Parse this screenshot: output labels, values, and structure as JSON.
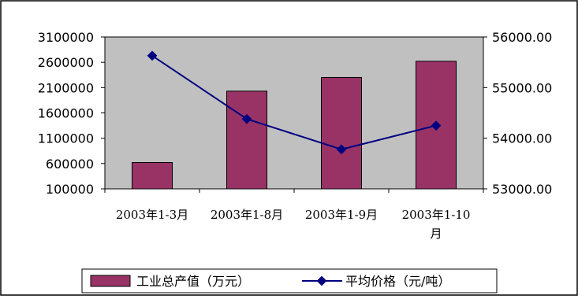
{
  "chart_data": {
    "type": "bar+line",
    "title": "",
    "categories": [
      [
        "2003年1-3月"
      ],
      [
        "2003年1-8月"
      ],
      [
        "2003年1-9月"
      ],
      [
        "2003年1-10",
        "月"
      ]
    ],
    "series": [
      {
        "name": "工业总产值（万元）",
        "type": "bar",
        "axis": "left",
        "color": "#993366",
        "values": [
          620000,
          2030000,
          2300000,
          2620000
        ]
      },
      {
        "name": "平均价格（元/吨）",
        "type": "line",
        "axis": "right",
        "color": "#000080",
        "values": [
          55630,
          54380,
          53780,
          54250
        ]
      }
    ],
    "y_left": {
      "min": 100000,
      "max": 3100000,
      "ticks": [
        "3100000",
        "2600000",
        "2100000",
        "1600000",
        "1100000",
        "600000",
        "100000"
      ]
    },
    "y_right": {
      "min": 53000,
      "max": 56000,
      "ticks": [
        "56000.00",
        "55000.00",
        "54000.00",
        "53000.00"
      ]
    },
    "plot_background": "#c0c0c0",
    "legend_position": "bottom",
    "grid": false
  }
}
